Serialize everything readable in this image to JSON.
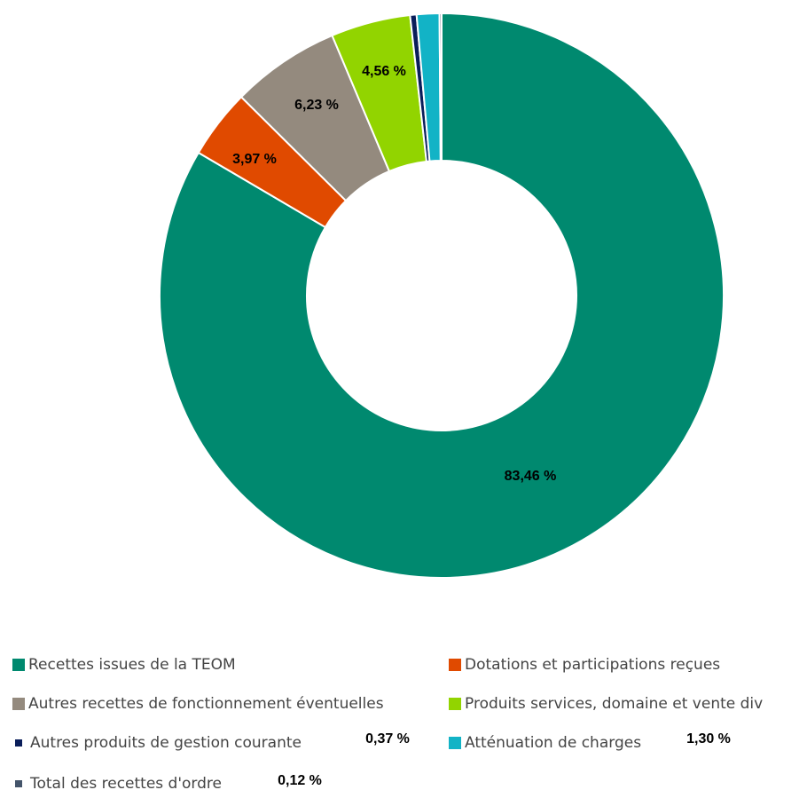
{
  "chart_data": {
    "type": "pie",
    "categories": [
      "Recettes issues de la TEOM",
      "Dotations et participations reçues",
      "Autres recettes de fonctionnement éventuelles",
      "Produits services, domaine et vente div",
      "Autres produits de gestion courante",
      "Atténuation de charges",
      "Total des recettes d'ordre"
    ],
    "values": [
      83.46,
      3.97,
      6.23,
      4.56,
      0.37,
      1.3,
      0.12
    ],
    "value_labels": [
      "83,46 %",
      "3,97 %",
      "6,23 %",
      "4,56 %",
      "0,37 %",
      "1,30 %",
      "0,12 %"
    ],
    "colors": [
      "#00896f",
      "#e04a00",
      "#948a7e",
      "#92d400",
      "#0a1e5a",
      "#12b3c6",
      "#44546a"
    ],
    "donut": true
  }
}
